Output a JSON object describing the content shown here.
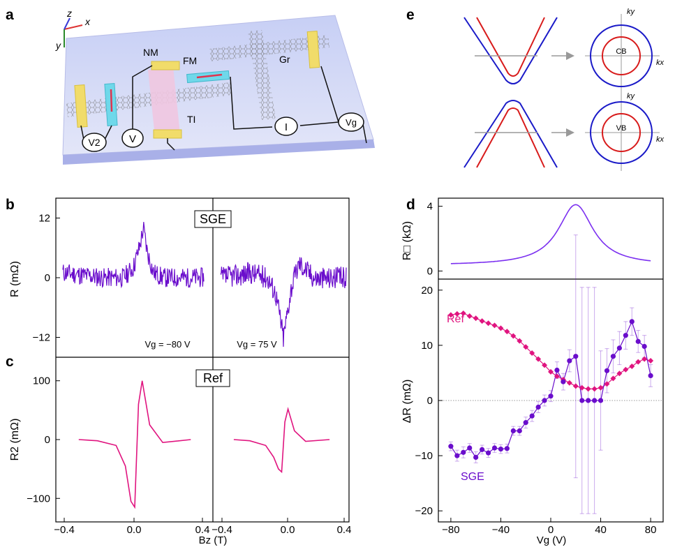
{
  "panels": {
    "a": "a",
    "b": "b",
    "c": "c",
    "d": "d",
    "e": "e"
  },
  "device": {
    "axis_z": "z",
    "axis_x": "x",
    "axis_y": "y",
    "label_nm": "NM",
    "label_fm": "FM",
    "label_gr": "Gr",
    "label_ti": "TI",
    "meter_v2": "V2",
    "meter_v": "V",
    "meter_i": "I",
    "meter_vg": "Vg"
  },
  "bands": {
    "cb": "CB",
    "vb": "VB",
    "kx": "kx",
    "ky": "ky",
    "colors": {
      "outer": "#1a1ac8",
      "inner": "#d81b1b",
      "arrow": "#999999"
    }
  },
  "colors": {
    "sge": "#6a0dcc",
    "ref": "#e0147f",
    "sheet": "#7b2ff0"
  },
  "chart_data": [
    {
      "type": "line",
      "panel": "b",
      "boxed_label": "SGE",
      "ylabel": "R (mΩ)",
      "yticks": [
        "12",
        "0",
        "−12"
      ],
      "ylim": [
        -16,
        16
      ],
      "series": [
        {
          "annotation": "Vg = −80 V",
          "x": [
            -0.4,
            -0.2,
            -0.1,
            -0.05,
            -0.02,
            0.0,
            0.02,
            0.05,
            0.1,
            0.2,
            0.3
          ],
          "values": [
            1,
            0,
            0,
            2,
            6,
            10,
            5,
            1,
            0,
            0,
            0
          ]
        },
        {
          "annotation": "Vg = 75 V",
          "x": [
            -0.4,
            -0.2,
            -0.1,
            -0.05,
            -0.02,
            0.0,
            0.02,
            0.05,
            0.1,
            0.2,
            0.4
          ],
          "values": [
            0,
            1,
            0,
            -3,
            -8,
            -12,
            -8,
            -2,
            3,
            0,
            0
          ]
        }
      ]
    },
    {
      "type": "line",
      "panel": "c",
      "boxed_label": "Ref",
      "ylabel": "R2 (mΩ)",
      "yticks": [
        "100",
        "0",
        "−100"
      ],
      "ylim": [
        -140,
        140
      ],
      "xlabel": "Bz (T)",
      "xticks": [
        "−0.4",
        "0.0",
        "0.4"
      ],
      "series": [
        {
          "x": [
            -0.3,
            -0.2,
            -0.1,
            -0.05,
            -0.02,
            0.0,
            0.02,
            0.04,
            0.08,
            0.15,
            0.3
          ],
          "values": [
            0,
            -2,
            -10,
            -45,
            -105,
            -115,
            60,
            100,
            25,
            -5,
            0
          ]
        },
        {
          "x": [
            -0.3,
            -0.2,
            -0.1,
            -0.05,
            -0.02,
            0.0,
            0.02,
            0.04,
            0.08,
            0.15,
            0.3
          ],
          "values": [
            0,
            -2,
            -10,
            -30,
            -50,
            -55,
            30,
            52,
            15,
            -3,
            0
          ]
        }
      ]
    },
    {
      "type": "line",
      "panel": "d-top",
      "ylabel": "R□ (kΩ)",
      "yticks": [
        "4",
        "0"
      ],
      "ylim": [
        -0.5,
        4.5
      ],
      "series": [
        {
          "x": [
            -80,
            -60,
            -40,
            -20,
            0,
            10,
            20,
            30,
            40,
            60,
            80
          ],
          "values": [
            0.5,
            0.6,
            0.8,
            1.1,
            2.0,
            3.0,
            4.1,
            3.3,
            2.2,
            1.2,
            0.8
          ]
        }
      ]
    },
    {
      "type": "scatter",
      "panel": "d-bottom",
      "xlabel": "Vg (V)",
      "xticks": [
        "−80",
        "−40",
        "0",
        "40",
        "80"
      ],
      "xlim": [
        -90,
        90
      ],
      "ylabel": "ΔR (mΩ)",
      "yticks": [
        "20",
        "10",
        "0",
        "−10",
        "−20"
      ],
      "ylim": [
        -22,
        22
      ],
      "series": [
        {
          "name": "Ref",
          "x": [
            -80,
            -75,
            -70,
            -65,
            -60,
            -55,
            -50,
            -45,
            -40,
            -35,
            -30,
            -25,
            -20,
            -15,
            -10,
            -5,
            0,
            5,
            10,
            15,
            20,
            25,
            30,
            35,
            40,
            45,
            50,
            55,
            60,
            65,
            70,
            75,
            80
          ],
          "values": [
            15.5,
            15.7,
            15.8,
            15.3,
            14.9,
            14.4,
            14.0,
            13.6,
            13.1,
            12.5,
            11.7,
            10.8,
            9.7,
            8.6,
            7.5,
            6.4,
            5.2,
            4.4,
            3.8,
            3.2,
            2.6,
            2.3,
            2.1,
            2.1,
            2.3,
            3.0,
            4.0,
            4.9,
            5.6,
            6.2,
            7.0,
            7.5,
            7.2
          ]
        },
        {
          "name": "SGE",
          "x": [
            -80,
            -75,
            -70,
            -65,
            -60,
            -55,
            -50,
            -45,
            -40,
            -35,
            -30,
            -25,
            -20,
            -15,
            -10,
            -5,
            0,
            5,
            10,
            15,
            20,
            25,
            30,
            35,
            40,
            45,
            50,
            55,
            60,
            65,
            70,
            75,
            80
          ],
          "values": [
            -8.3,
            -10.0,
            -9.4,
            -8.6,
            -10.3,
            -8.9,
            -9.5,
            -8.6,
            -8.8,
            -8.7,
            -5.5,
            -5.5,
            -4.0,
            -2.8,
            -1.2,
            0.0,
            0.8,
            5.5,
            3.4,
            7.2,
            8.0,
            0.0,
            0.0,
            0.0,
            0.0,
            5.4,
            8.0,
            9.5,
            11.8,
            14.3,
            10.7,
            9.8,
            4.5
          ],
          "errors": [
            0.8,
            1.0,
            1.0,
            0.8,
            1.0,
            0.8,
            0.8,
            0.8,
            0.8,
            0.8,
            0.8,
            0.8,
            1.0,
            1.0,
            1.0,
            1.0,
            1.0,
            1.5,
            1.5,
            2.0,
            22,
            20.5,
            20.5,
            20.5,
            9,
            4,
            3,
            3,
            2.5,
            2.5,
            2,
            2,
            2
          ]
        }
      ]
    }
  ]
}
